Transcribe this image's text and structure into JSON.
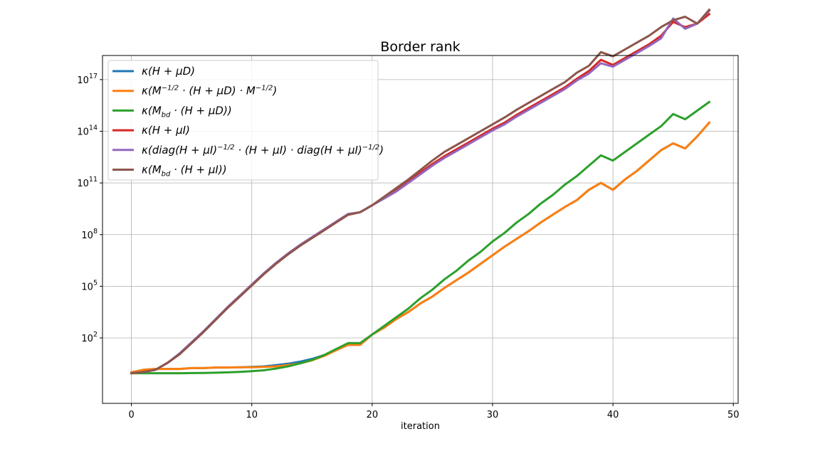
{
  "chart_data": {
    "type": "line",
    "title": "Border rank",
    "xlabel": "iteration",
    "ylabel": "",
    "xlim": [
      -2.4,
      50.4
    ],
    "ylim_log10": [
      -1.8,
      18.4
    ],
    "y_scale": "log",
    "grid": true,
    "legend_position": "top-left",
    "x_ticks": [
      0,
      10,
      20,
      30,
      40,
      50
    ],
    "y_ticks": [
      {
        "exp": 2,
        "label_base": "10",
        "label_exp": "2"
      },
      {
        "exp": 5,
        "label_base": "10",
        "label_exp": "5"
      },
      {
        "exp": 8,
        "label_base": "10",
        "label_exp": "8"
      },
      {
        "exp": 11,
        "label_base": "10",
        "label_exp": "11"
      },
      {
        "exp": 14,
        "label_base": "10",
        "label_exp": "14"
      },
      {
        "exp": 17,
        "label_base": "10",
        "label_exp": "17"
      }
    ],
    "x": [
      0,
      1,
      2,
      3,
      4,
      5,
      6,
      7,
      8,
      9,
      10,
      11,
      12,
      13,
      14,
      15,
      16,
      17,
      18,
      19,
      20,
      21,
      22,
      23,
      24,
      25,
      26,
      27,
      28,
      29,
      30,
      31,
      32,
      33,
      34,
      35,
      36,
      37,
      38,
      39,
      40,
      41,
      42,
      43,
      44,
      45,
      46,
      47,
      48
    ],
    "series": [
      {
        "label_parts": [
          {
            "t": "κ(H + μD)"
          }
        ],
        "color": "#1f77b4",
        "log10_values": [
          0.0,
          0.15,
          0.2,
          0.2,
          0.2,
          0.25,
          0.25,
          0.28,
          0.28,
          0.3,
          0.32,
          0.35,
          0.42,
          0.5,
          0.62,
          0.78,
          1.0,
          1.3,
          1.6,
          1.6,
          2.2,
          2.6,
          3.1,
          3.5,
          4.0,
          4.4,
          4.9,
          5.35,
          5.8,
          6.3,
          6.8,
          7.3,
          7.75,
          8.2,
          8.7,
          9.15,
          9.6,
          10.0,
          10.6,
          11.0,
          10.6,
          11.2,
          11.7,
          12.3,
          12.9,
          13.3,
          13.0,
          13.7,
          14.5
        ]
      },
      {
        "label_parts": [
          {
            "t": "κ(M"
          },
          {
            "sup": "−1/2"
          },
          {
            "t": " · (H + μD) · M"
          },
          {
            "sup": "−1/2"
          },
          {
            "t": ")"
          }
        ],
        "color": "#ff7f0e",
        "log10_values": [
          0.0,
          0.15,
          0.2,
          0.2,
          0.2,
          0.25,
          0.25,
          0.28,
          0.28,
          0.3,
          0.3,
          0.32,
          0.35,
          0.42,
          0.52,
          0.7,
          0.95,
          1.28,
          1.6,
          1.6,
          2.2,
          2.6,
          3.1,
          3.5,
          4.0,
          4.4,
          4.9,
          5.35,
          5.8,
          6.3,
          6.8,
          7.3,
          7.75,
          8.2,
          8.7,
          9.15,
          9.6,
          10.0,
          10.6,
          11.0,
          10.6,
          11.2,
          11.7,
          12.3,
          12.9,
          13.3,
          13.0,
          13.7,
          14.5
        ]
      },
      {
        "label_parts": [
          {
            "t": "κ(M"
          },
          {
            "sub": "bd"
          },
          {
            "t": " · (H + μD))"
          }
        ],
        "color": "#2ca02c",
        "log10_values": [
          -0.05,
          -0.05,
          -0.05,
          -0.05,
          -0.05,
          -0.04,
          -0.03,
          -0.02,
          0.0,
          0.03,
          0.07,
          0.12,
          0.22,
          0.35,
          0.52,
          0.72,
          1.0,
          1.35,
          1.7,
          1.7,
          2.2,
          2.7,
          3.2,
          3.7,
          4.3,
          4.8,
          5.4,
          5.9,
          6.5,
          7.0,
          7.6,
          8.1,
          8.7,
          9.2,
          9.8,
          10.3,
          10.9,
          11.4,
          12.0,
          12.6,
          12.3,
          12.8,
          13.3,
          13.8,
          14.3,
          15.0,
          14.7,
          15.2,
          15.7
        ]
      },
      {
        "label_parts": [
          {
            "t": "κ(H + μI)"
          }
        ],
        "color": "#d62728",
        "log10_values": [
          -0.05,
          0.02,
          0.15,
          0.55,
          1.05,
          1.7,
          2.35,
          3.05,
          3.75,
          4.4,
          5.05,
          5.7,
          6.3,
          6.85,
          7.35,
          7.8,
          8.25,
          8.7,
          9.15,
          9.3,
          9.7,
          10.15,
          10.6,
          11.1,
          11.6,
          12.1,
          12.55,
          12.95,
          13.35,
          13.75,
          14.15,
          14.5,
          14.95,
          15.35,
          15.75,
          16.15,
          16.55,
          17.05,
          17.5,
          18.15,
          17.85,
          18.25,
          18.65,
          19.05,
          19.55,
          20.35,
          20.05,
          20.25,
          20.8
        ]
      },
      {
        "label_parts": [
          {
            "t": "κ(diag(H + μI)"
          },
          {
            "sup": "−1/2"
          },
          {
            "t": " · (H + μI) · diag(H + μI)"
          },
          {
            "sup": "−1/2"
          },
          {
            "t": ")"
          }
        ],
        "color": "#9467bd",
        "log10_values": [
          -0.05,
          0.02,
          0.15,
          0.55,
          1.1,
          1.75,
          2.4,
          3.1,
          3.8,
          4.45,
          5.1,
          5.75,
          6.35,
          6.9,
          7.4,
          7.85,
          8.3,
          8.75,
          9.2,
          9.3,
          9.7,
          10.1,
          10.5,
          11.0,
          11.5,
          12.0,
          12.45,
          12.85,
          13.25,
          13.65,
          14.05,
          14.4,
          14.85,
          15.25,
          15.65,
          16.05,
          16.45,
          16.95,
          17.35,
          17.95,
          17.75,
          18.15,
          18.55,
          18.95,
          19.4,
          20.55,
          19.95,
          20.25,
          21.0
        ]
      },
      {
        "label_parts": [
          {
            "t": "κ(M"
          },
          {
            "sub": "bd"
          },
          {
            "t": " · (H + μI))"
          }
        ],
        "color": "#8c564b",
        "log10_values": [
          -0.05,
          0.02,
          0.15,
          0.55,
          1.05,
          1.7,
          2.35,
          3.05,
          3.75,
          4.4,
          5.05,
          5.7,
          6.3,
          6.85,
          7.35,
          7.8,
          8.25,
          8.7,
          9.15,
          9.3,
          9.7,
          10.2,
          10.7,
          11.2,
          11.75,
          12.3,
          12.8,
          13.2,
          13.6,
          14.0,
          14.4,
          14.8,
          15.25,
          15.65,
          16.05,
          16.45,
          16.85,
          17.4,
          17.8,
          18.6,
          18.35,
          18.75,
          19.15,
          19.55,
          20.05,
          20.45,
          20.65,
          20.25,
          21.05
        ]
      }
    ]
  }
}
